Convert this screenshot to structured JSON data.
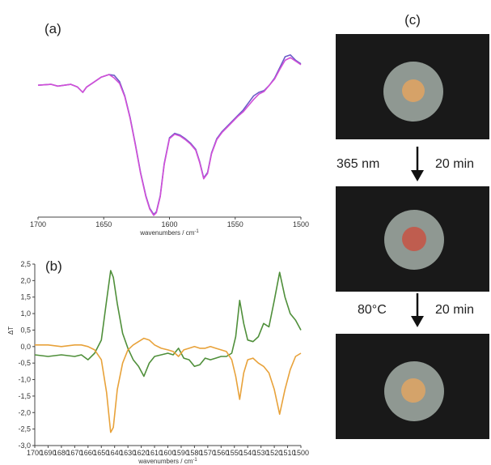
{
  "panels": {
    "a": "(a)",
    "b": "(b)",
    "c": "(c)"
  },
  "steps": [
    {
      "left": "365 nm",
      "right": "20 min"
    },
    {
      "left": "80°C",
      "right": "20 min"
    }
  ],
  "spot_colors": [
    "#d6a268",
    "#bf5d4f",
    "#d4a36a"
  ],
  "chart_data": [
    {
      "type": "line",
      "panel": "(a)",
      "xlabel": "wavenumbers / cm",
      "xlabel_sup": "-1",
      "ylabel": "",
      "xlim": [
        1700,
        1500
      ],
      "x_reversed": true,
      "xticks": [
        1700,
        1650,
        1600,
        1550,
        1500
      ],
      "y_axis_shown": false,
      "grid": false,
      "series": [
        {
          "color": "#6b5bc7",
          "x": [
            1700,
            1690,
            1685,
            1680,
            1675,
            1670,
            1666,
            1663,
            1658,
            1652,
            1646,
            1642,
            1638,
            1634,
            1630,
            1626,
            1622,
            1618,
            1615,
            1612,
            1610,
            1607,
            1604,
            1600,
            1596,
            1592,
            1588,
            1584,
            1580,
            1577,
            1574,
            1571,
            1568,
            1564,
            1560,
            1556,
            1552,
            1548,
            1544,
            1540,
            1536,
            1532,
            1528,
            1524,
            1520,
            1516,
            1512,
            1508,
            1504,
            1500
          ],
          "y": [
            0.74,
            0.745,
            0.735,
            0.74,
            0.745,
            0.73,
            0.7,
            0.73,
            0.755,
            0.785,
            0.8,
            0.795,
            0.76,
            0.68,
            0.56,
            0.41,
            0.25,
            0.12,
            0.05,
            0.015,
            0.03,
            0.12,
            0.3,
            0.445,
            0.47,
            0.46,
            0.44,
            0.415,
            0.38,
            0.31,
            0.22,
            0.25,
            0.36,
            0.44,
            0.48,
            0.51,
            0.54,
            0.57,
            0.6,
            0.64,
            0.68,
            0.7,
            0.71,
            0.74,
            0.78,
            0.84,
            0.9,
            0.91,
            0.88,
            0.86
          ]
        },
        {
          "color": "#d14fd8",
          "x": [
            1700,
            1690,
            1685,
            1680,
            1675,
            1670,
            1666,
            1663,
            1658,
            1652,
            1646,
            1642,
            1638,
            1634,
            1630,
            1626,
            1622,
            1618,
            1615,
            1612,
            1610,
            1607,
            1604,
            1600,
            1596,
            1592,
            1588,
            1584,
            1580,
            1577,
            1574,
            1571,
            1568,
            1564,
            1560,
            1556,
            1552,
            1548,
            1544,
            1540,
            1536,
            1532,
            1528,
            1524,
            1520,
            1516,
            1512,
            1508,
            1504,
            1500
          ],
          "y": [
            0.74,
            0.745,
            0.735,
            0.74,
            0.745,
            0.73,
            0.7,
            0.73,
            0.755,
            0.785,
            0.8,
            0.78,
            0.75,
            0.675,
            0.555,
            0.405,
            0.245,
            0.115,
            0.045,
            0.01,
            0.025,
            0.115,
            0.295,
            0.44,
            0.465,
            0.455,
            0.435,
            0.41,
            0.375,
            0.305,
            0.215,
            0.245,
            0.355,
            0.435,
            0.475,
            0.505,
            0.535,
            0.565,
            0.59,
            0.625,
            0.66,
            0.69,
            0.705,
            0.74,
            0.775,
            0.83,
            0.88,
            0.895,
            0.875,
            0.855
          ]
        }
      ]
    },
    {
      "type": "line",
      "panel": "(b)",
      "xlabel": "wavenumbers / cm",
      "xlabel_sup": "-1",
      "ylabel": "ΔT",
      "xlim": [
        1700,
        1500
      ],
      "x_reversed": true,
      "xticks": [
        1700,
        1690,
        1680,
        1670,
        1660,
        1650,
        1640,
        1630,
        1620,
        1610,
        1600,
        1590,
        1580,
        1570,
        1560,
        1550,
        1540,
        1530,
        1520,
        1510,
        1500
      ],
      "ylim": [
        -3.0,
        2.5
      ],
      "yticks": [
        2.5,
        2.0,
        1.5,
        1.0,
        0.5,
        0.0,
        -0.5,
        -1.0,
        -1.5,
        -2.0,
        -2.5,
        -3.0
      ],
      "grid": false,
      "series": [
        {
          "color": "#4f8f3a",
          "x": [
            1700,
            1690,
            1680,
            1670,
            1665,
            1660,
            1655,
            1650,
            1646,
            1643,
            1641,
            1638,
            1634,
            1630,
            1626,
            1622,
            1618,
            1614,
            1610,
            1605,
            1600,
            1596,
            1592,
            1588,
            1584,
            1580,
            1576,
            1572,
            1568,
            1564,
            1560,
            1556,
            1552,
            1549,
            1546,
            1543,
            1540,
            1536,
            1532,
            1528,
            1524,
            1520,
            1516,
            1512,
            1508,
            1504,
            1500
          ],
          "y": [
            -0.25,
            -0.3,
            -0.25,
            -0.3,
            -0.25,
            -0.4,
            -0.2,
            0.2,
            1.4,
            2.3,
            2.1,
            1.3,
            0.4,
            -0.05,
            -0.4,
            -0.6,
            -0.9,
            -0.5,
            -0.3,
            -0.25,
            -0.2,
            -0.25,
            -0.05,
            -0.35,
            -0.4,
            -0.6,
            -0.55,
            -0.35,
            -0.4,
            -0.35,
            -0.3,
            -0.3,
            -0.2,
            0.3,
            1.4,
            0.7,
            0.2,
            0.15,
            0.3,
            0.7,
            0.6,
            1.4,
            2.25,
            1.5,
            1.0,
            0.8,
            0.5
          ]
        },
        {
          "color": "#e8a23a",
          "x": [
            1700,
            1690,
            1680,
            1670,
            1665,
            1660,
            1655,
            1650,
            1646,
            1643,
            1641,
            1638,
            1634,
            1630,
            1626,
            1622,
            1618,
            1614,
            1610,
            1605,
            1600,
            1596,
            1592,
            1588,
            1584,
            1580,
            1576,
            1572,
            1568,
            1564,
            1560,
            1556,
            1552,
            1549,
            1546,
            1543,
            1540,
            1536,
            1532,
            1528,
            1524,
            1520,
            1516,
            1512,
            1508,
            1504,
            1500
          ],
          "y": [
            0.05,
            0.05,
            0.0,
            0.05,
            0.05,
            0.0,
            -0.1,
            -0.4,
            -1.4,
            -2.6,
            -2.45,
            -1.3,
            -0.5,
            -0.1,
            0.05,
            0.15,
            0.25,
            0.2,
            0.05,
            -0.05,
            -0.1,
            -0.15,
            -0.3,
            -0.1,
            -0.05,
            0.0,
            -0.05,
            -0.05,
            0.0,
            -0.05,
            -0.1,
            -0.15,
            -0.4,
            -0.9,
            -1.6,
            -0.8,
            -0.4,
            -0.35,
            -0.5,
            -0.6,
            -0.8,
            -1.3,
            -2.05,
            -1.3,
            -0.7,
            -0.3,
            -0.2
          ]
        }
      ]
    }
  ]
}
